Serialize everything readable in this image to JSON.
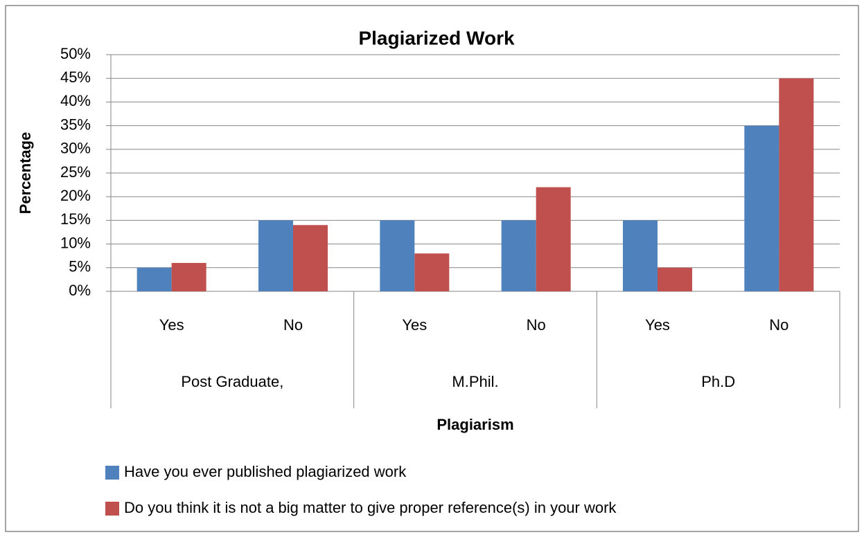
{
  "chart_data": {
    "type": "bar",
    "title": "Plagiarized Work",
    "x_label": "Plagiarism",
    "y_label": "Percentage",
    "categories": [
      "Yes",
      "No",
      "Yes",
      "No",
      "Yes",
      "No"
    ],
    "groups": [
      "Post Graduate,",
      "M.Phil.",
      "Ph.D"
    ],
    "series": [
      {
        "name": "Have you ever published plagiarized work",
        "color": "#4f81bd",
        "values": [
          5,
          15,
          15,
          15,
          15,
          35
        ]
      },
      {
        "name": "Do you think it is not a big matter to give proper reference(s) in your work",
        "color": "#c0504d",
        "values": [
          6,
          14,
          8,
          22,
          5,
          45
        ]
      }
    ],
    "ylim": [
      0,
      50
    ],
    "yticks": [
      {
        "value": 0,
        "label": "0%"
      },
      {
        "value": 5,
        "label": "5%"
      },
      {
        "value": 10,
        "label": "10%"
      },
      {
        "value": 15,
        "label": "15%"
      },
      {
        "value": 20,
        "label": "20%"
      },
      {
        "value": 25,
        "label": "25%"
      },
      {
        "value": 30,
        "label": "30%"
      },
      {
        "value": 35,
        "label": "35%"
      },
      {
        "value": 40,
        "label": "40%"
      },
      {
        "value": 45,
        "label": "45%"
      },
      {
        "value": 50,
        "label": "50%"
      }
    ],
    "grid": true,
    "legend": "bottom"
  }
}
